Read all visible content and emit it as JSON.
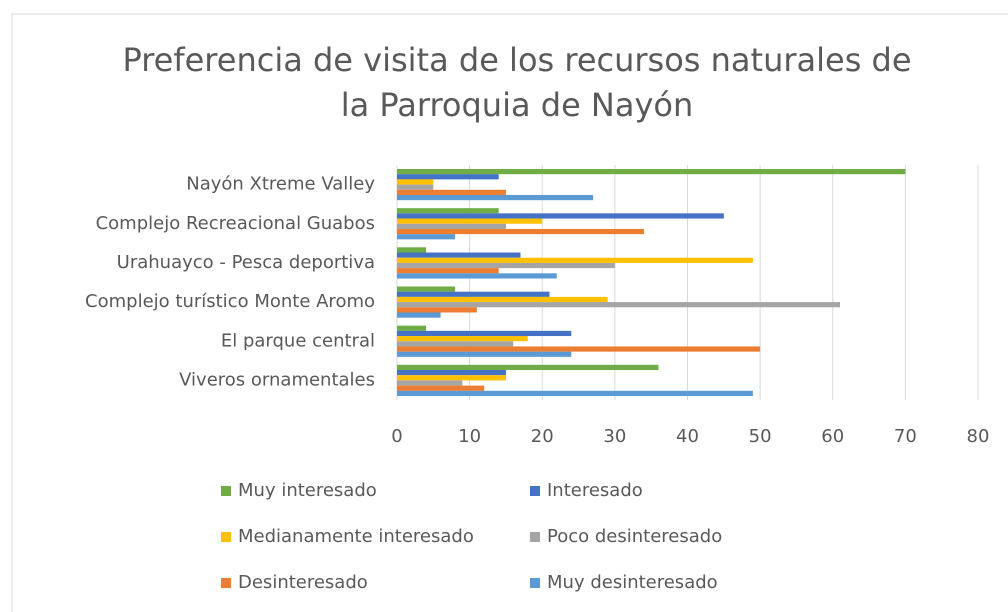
{
  "chart_data": {
    "type": "bar",
    "orientation": "horizontal",
    "title": "Preferencia de visita de los recursos naturales de\nla Parroquia de Nayón",
    "categories": [
      "Nayón Xtreme Valley",
      "Complejo Recreacional Guabos",
      "Urahuayco - Pesca deportiva",
      "Complejo turístico Monte Aromo",
      "El parque central",
      "Viveros ornamentales"
    ],
    "series": [
      {
        "name": "Muy interesado",
        "color": "#70ad47",
        "values": [
          70,
          14,
          4,
          8,
          4,
          36
        ]
      },
      {
        "name": "Interesado",
        "color": "#4472c4",
        "values": [
          14,
          45,
          17,
          21,
          24,
          15
        ]
      },
      {
        "name": "Medianamente interesado",
        "color": "#ffc000",
        "values": [
          5,
          20,
          49,
          29,
          18,
          15
        ]
      },
      {
        "name": "Poco desinteresado",
        "color": "#a5a5a5",
        "values": [
          5,
          15,
          30,
          61,
          16,
          9
        ]
      },
      {
        "name": "Desinteresado",
        "color": "#ed7d31",
        "values": [
          15,
          34,
          14,
          11,
          50,
          12
        ]
      },
      {
        "name": "Muy desinteresado",
        "color": "#5b9bd5",
        "values": [
          27,
          8,
          22,
          6,
          24,
          49
        ]
      }
    ],
    "xlim": [
      0,
      80
    ],
    "xticks": [
      0,
      10,
      20,
      30,
      40,
      50,
      60,
      70,
      80
    ],
    "grid": true,
    "legend": "bottom"
  }
}
